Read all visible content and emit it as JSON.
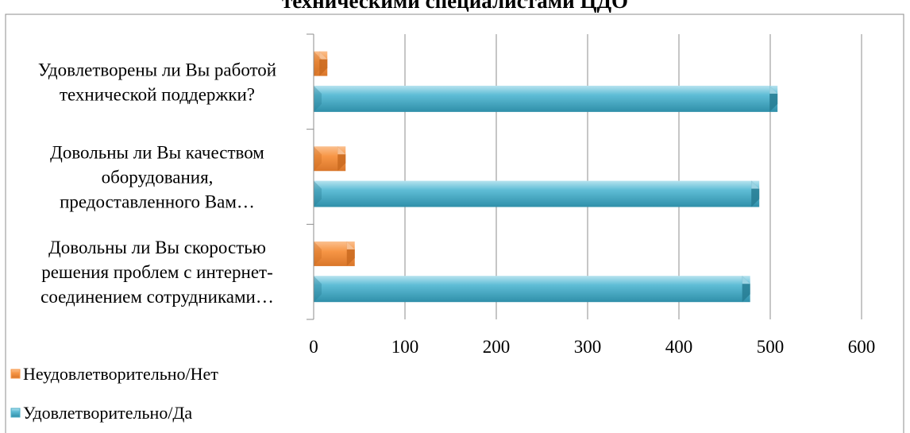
{
  "chart_data": {
    "type": "bar",
    "orientation": "horizontal",
    "title": "техническими специалистами ЦДО",
    "categories": [
      [
        "Удовлетворены ли Вы работой",
        "технической поддержки?"
      ],
      [
        "Довольны ли Вы качеством",
        "оборудования,",
        "предоставленного Вам…"
      ],
      [
        "Довольны ли Вы скоростью",
        "решения проблем с интернет-",
        "соединением сотрудниками…"
      ]
    ],
    "series": [
      {
        "name": "Неудовлетворительно/Нет",
        "color": "#f79646",
        "values": [
          15,
          35,
          45
        ]
      },
      {
        "name": "Удовлетворительно/Да",
        "color": "#4bacc6",
        "values": [
          508,
          488,
          478
        ]
      }
    ],
    "xlim": [
      0,
      600
    ],
    "xticks": [
      0,
      100,
      200,
      300,
      400,
      500,
      600
    ],
    "grid": true,
    "legend_position": "bottom-left"
  }
}
